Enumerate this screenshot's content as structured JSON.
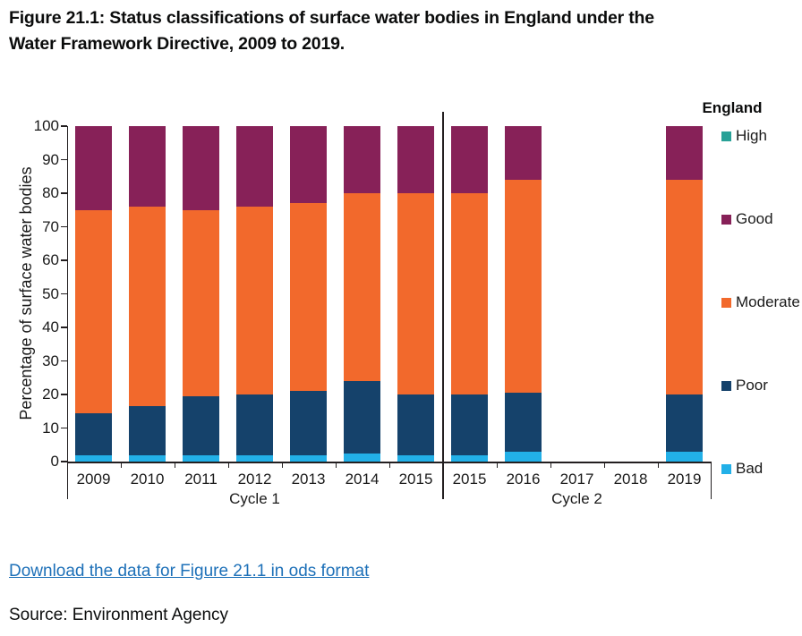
{
  "title": {
    "line1": "Figure 21.1: Status classifications of surface water bodies in England under the",
    "line2": "Water Framework Directive, 2009 to 2019."
  },
  "download_link": "Download the data for Figure 21.1 in ods format",
  "source": "Source: Environment Agency",
  "colors": {
    "link": "#1D70B8",
    "text": "#0B0C0C",
    "axis": "#231F20",
    "bad": "#22B0E8",
    "poor": "#15426B",
    "moderate": "#F2692C",
    "good": "#872158",
    "high": "#28A197"
  },
  "chart_data": {
    "type": "bar",
    "stacked": true,
    "legend_title": "England",
    "legend_position": "right",
    "xlabel": "",
    "ylabel": "Percentage of surface water bodies",
    "ylim": [
      0,
      100
    ],
    "ytick_step": 10,
    "grid": false,
    "categories": [
      "2009",
      "2010",
      "2011",
      "2012",
      "2013",
      "2014",
      "2015",
      "2015",
      "2016",
      "2017",
      "2018",
      "2019"
    ],
    "groups": [
      {
        "label": "Cycle 1",
        "start": 0,
        "end": 7
      },
      {
        "label": "Cycle 2",
        "start": 7,
        "end": 12
      }
    ],
    "series": [
      {
        "name": "Bad",
        "color": "#22B0E8",
        "values": [
          2,
          2,
          2,
          2,
          2,
          2.5,
          2,
          2,
          3,
          null,
          null,
          3
        ]
      },
      {
        "name": "Poor",
        "color": "#15426B",
        "values": [
          12.5,
          14.5,
          17.5,
          18,
          19,
          21.5,
          18,
          18,
          17.5,
          null,
          null,
          17
        ]
      },
      {
        "name": "Moderate",
        "color": "#F2692C",
        "values": [
          60.5,
          59.5,
          55.5,
          56,
          56,
          56,
          60,
          60,
          63.5,
          null,
          null,
          64
        ]
      },
      {
        "name": "Good",
        "color": "#872158",
        "values": [
          25,
          24,
          25,
          24,
          23,
          20,
          20,
          20,
          16,
          null,
          null,
          16
        ]
      },
      {
        "name": "High",
        "color": "#28A197",
        "values": [
          0,
          0,
          0,
          0,
          0,
          0,
          0,
          0,
          0,
          null,
          null,
          0
        ]
      }
    ]
  }
}
